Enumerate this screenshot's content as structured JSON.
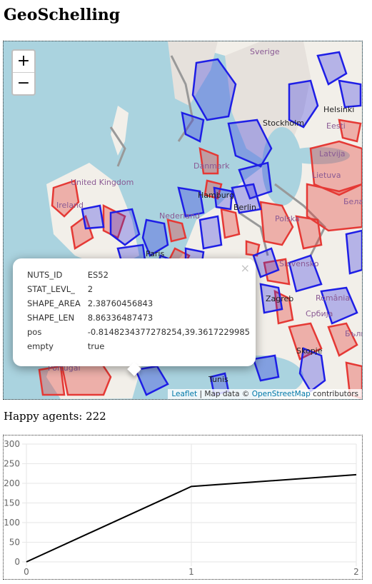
{
  "page": {
    "title": "GeoSchelling"
  },
  "map": {
    "zoom_in_label": "+",
    "zoom_out_label": "−",
    "place_labels": [
      "Sverige",
      "Helsinki",
      "Stockholm",
      "Eesti",
      "Latvija",
      "Lietuva",
      "Danmark",
      "United Kingdom",
      "Ireland",
      "Hamburg",
      "Berlin",
      "Nederland",
      "Polska",
      "Бела",
      "Paris",
      "Slovensko",
      "Zagreb",
      "România",
      "Србија",
      "България",
      "Skopje",
      "Portugal",
      "Tunis"
    ],
    "colors": {
      "red_agent": "#e53935",
      "blue_agent": "#1e1ee6",
      "sea": "#aad3df",
      "land": "#f2efe9"
    },
    "attribution": {
      "leaflet": "Leaflet",
      "sep": " | Map data © ",
      "osm": "OpenStreetMap",
      "tail": " contributors"
    }
  },
  "popup": {
    "close_label": "×",
    "rows": [
      {
        "key": "NUTS_ID",
        "value": "ES52"
      },
      {
        "key": "STAT_LEVL_",
        "value": "2"
      },
      {
        "key": "SHAPE_AREA",
        "value": "2.38760456843"
      },
      {
        "key": "SHAPE_LEN",
        "value": "8.86336487473"
      },
      {
        "key": "pos",
        "value": "-0.8148234377278254,39.3617229985"
      },
      {
        "key": "empty",
        "value": "true"
      }
    ]
  },
  "status": {
    "happy_text": "Happy agents: 222"
  },
  "chart_data": {
    "type": "line",
    "x": [
      0,
      1,
      2
    ],
    "values": [
      0,
      192,
      222
    ],
    "ylim": [
      0,
      300
    ],
    "yticks": [
      0,
      50,
      100,
      150,
      200,
      250,
      300
    ],
    "xticks": [
      0,
      1,
      2
    ],
    "grid": true,
    "line_color": "#000000"
  }
}
